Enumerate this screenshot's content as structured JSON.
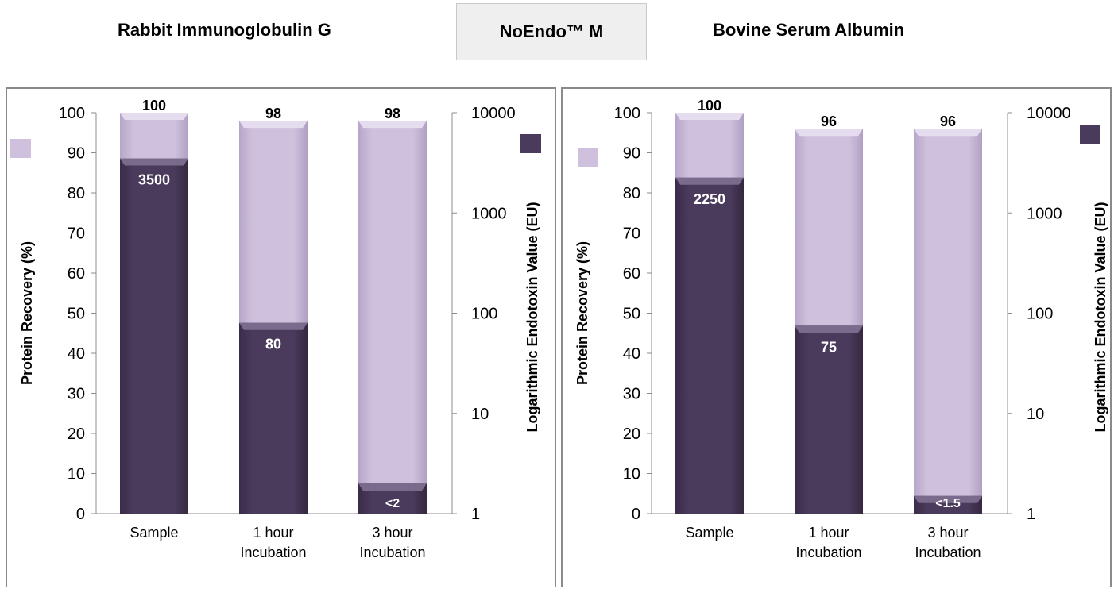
{
  "header": {
    "left_title": "Rabbit Immunoglobulin G",
    "badge": "NoEndo™ M",
    "right_title": "Bovine Serum Albumin"
  },
  "colors": {
    "recovery": "#cfc1dd",
    "endotoxin": "#4a3a5c"
  },
  "chart_data": [
    {
      "type": "bar",
      "title": "Rabbit Immunoglobulin G",
      "categories": [
        "Sample",
        "1 hour Incubation",
        "3 hour Incubation"
      ],
      "category_lines": [
        [
          "Sample"
        ],
        [
          "1 hour",
          "Incubation"
        ],
        [
          "3 hour",
          "Incubation"
        ]
      ],
      "ylabel": "Protein Recovery (%)",
      "y2label": "Logarithmic Endotoxin Value (EU)",
      "ylim": [
        0,
        100
      ],
      "yticks": [
        0,
        10,
        20,
        30,
        40,
        50,
        60,
        70,
        80,
        90,
        100
      ],
      "y2scale": "log",
      "y2lim": [
        1,
        10000
      ],
      "y2ticks": [
        1,
        10,
        100,
        1000,
        10000
      ],
      "recovery": {
        "values": [
          100,
          98,
          98
        ],
        "labels": [
          "100",
          "98",
          "98"
        ]
      },
      "endotoxin": {
        "values": [
          3500,
          80,
          2
        ],
        "labels": [
          "3500",
          "80",
          "<2"
        ]
      }
    },
    {
      "type": "bar",
      "title": "Bovine Serum Albumin",
      "categories": [
        "Sample",
        "1 hour Incubation",
        "3 hour Incubation"
      ],
      "category_lines": [
        [
          "Sample"
        ],
        [
          "1 hour",
          "Incubation"
        ],
        [
          "3 hour",
          "Incubation"
        ]
      ],
      "ylabel": "Protein Recovery (%)",
      "y2label": "Logarithmic Endotoxin Value (EU)",
      "ylim": [
        0,
        100
      ],
      "yticks": [
        0,
        10,
        20,
        30,
        40,
        50,
        60,
        70,
        80,
        90,
        100
      ],
      "y2scale": "log",
      "y2lim": [
        1,
        10000
      ],
      "y2ticks": [
        1,
        10,
        100,
        1000,
        10000
      ],
      "recovery": {
        "values": [
          100,
          96,
          96
        ],
        "labels": [
          "100",
          "96",
          "96"
        ]
      },
      "endotoxin": {
        "values": [
          2250,
          75,
          1.5
        ],
        "labels": [
          "2250",
          "75",
          "<1.5"
        ]
      }
    }
  ]
}
